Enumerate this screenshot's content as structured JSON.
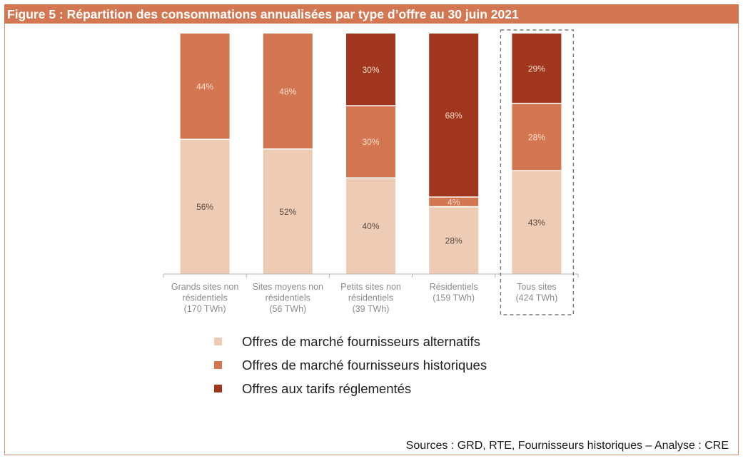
{
  "figure": {
    "title": "Figure 5 : Répartition des consommations annualisées par type d’offre au 30 juin 2021",
    "source": "Sources : GRD, RTE, Fournisseurs historiques – Analyse : CRE"
  },
  "colors": {
    "alternatifs": "#eecbb4",
    "historiques": "#d37752",
    "reglementes": "#a0361e",
    "title_bg": "#d37752",
    "label_dark": "#5a4a42",
    "label_light": "#f6dccb"
  },
  "chart_data": {
    "type": "bar",
    "stacked": true,
    "normalized": true,
    "title": "Répartition des consommations annualisées par type d’offre au 30 juin 2021",
    "xlabel": "",
    "ylabel": "",
    "ylim": [
      0,
      100
    ],
    "grid": false,
    "legend_position": "bottom",
    "highlighted_category": "Tous sites (424 TWh)",
    "categories": [
      {
        "lines": [
          "Grands sites non",
          "résidentiels",
          "(170 TWh)"
        ],
        "name": "Grands sites non résidentiels (170 TWh)"
      },
      {
        "lines": [
          "Sites moyens non",
          "résidentiels",
          "(56 TWh)"
        ],
        "name": "Sites moyens non résidentiels (56 TWh)"
      },
      {
        "lines": [
          "Petits sites non",
          "résidentiels",
          "(39 TWh)"
        ],
        "name": "Petits sites non résidentiels (39 TWh)"
      },
      {
        "lines": [
          "Résidentiels",
          "(159 TWh)"
        ],
        "name": "Résidentiels (159 TWh)"
      },
      {
        "lines": [
          "Tous sites",
          "(424 TWh)"
        ],
        "name": "Tous sites (424 TWh)"
      }
    ],
    "series": [
      {
        "key": "alternatifs",
        "name": "Offres de marché fournisseurs alternatifs",
        "values": [
          56,
          52,
          40,
          28,
          43
        ]
      },
      {
        "key": "historiques",
        "name": "Offres de marché fournisseurs historiques",
        "values": [
          44,
          48,
          30,
          4,
          28
        ]
      },
      {
        "key": "reglementes",
        "name": "Offres aux tarifs réglementés",
        "values": [
          0,
          0,
          30,
          68,
          29
        ]
      }
    ]
  }
}
